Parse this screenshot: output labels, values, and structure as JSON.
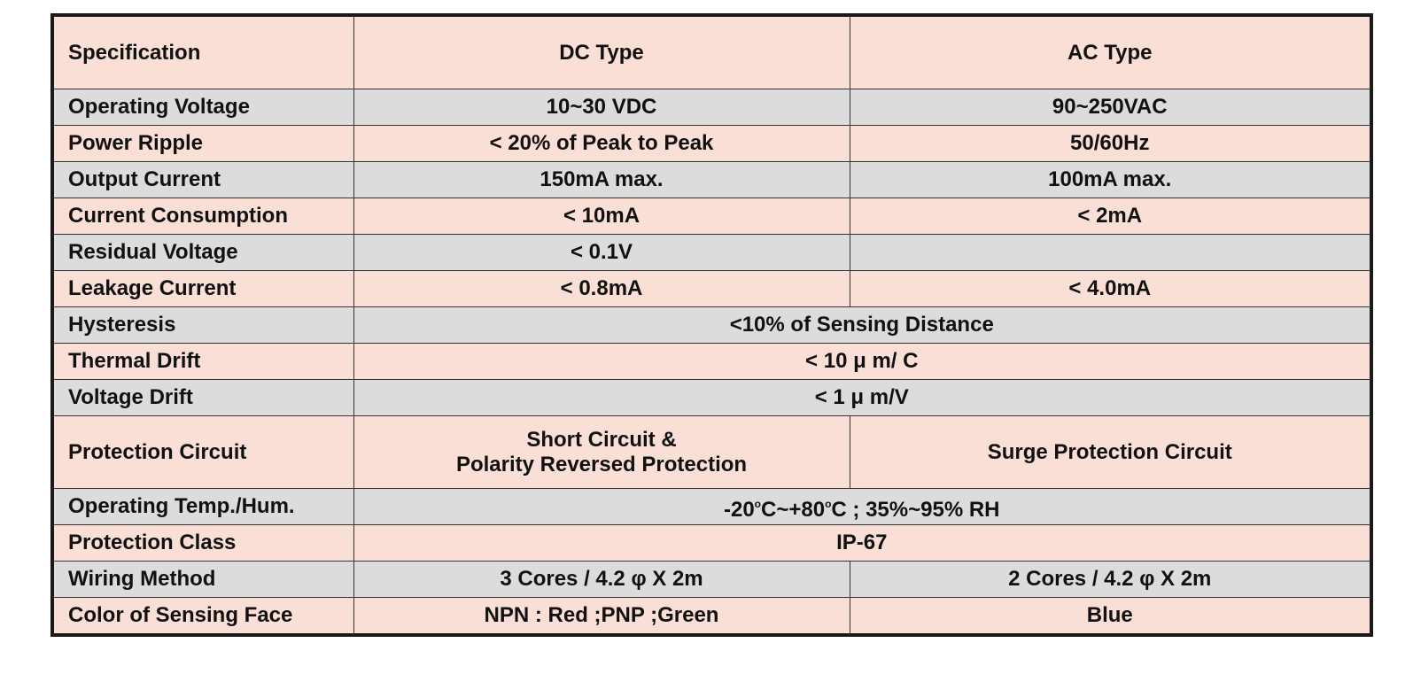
{
  "table": {
    "headers": {
      "spec": "Specification",
      "dc": "DC Type",
      "ac": "AC Type"
    },
    "rows": {
      "operating_voltage": {
        "label": "Operating Voltage",
        "dc": "10~30 VDC",
        "ac": "90~250VAC"
      },
      "power_ripple": {
        "label": "Power Ripple",
        "dc": "< 20% of Peak to Peak",
        "ac": "50/60Hz"
      },
      "output_current": {
        "label": "Output Current",
        "dc": "150mA max.",
        "ac": "100mA max."
      },
      "current_consumption": {
        "label": "Current Consumption",
        "dc": "< 10mA",
        "ac": "< 2mA"
      },
      "residual_voltage": {
        "label": "Residual Voltage",
        "dc": "< 0.1V",
        "ac": ""
      },
      "leakage_current": {
        "label": "Leakage Current",
        "dc": "< 0.8mA",
        "ac": "< 4.0mA"
      },
      "hysteresis": {
        "label": "Hysteresis",
        "value": "<10% of Sensing Distance"
      },
      "thermal_drift": {
        "label": "Thermal Drift",
        "value": "< 10 μ m/ C"
      },
      "voltage_drift": {
        "label": "Voltage Drift",
        "value": "< 1 μ m/V"
      },
      "protection_circuit": {
        "label": "Protection Circuit",
        "dc_line1": "Short Circuit &",
        "dc_line2": "Polarity Reversed Protection",
        "ac": "Surge Protection Circuit"
      },
      "operating_temp": {
        "label": "Operating Temp./Hum.",
        "part1": "-20",
        "degree1": "o",
        "part2": "C~+80",
        "degree2": "o",
        "part3": "C ; 35%~95% RH"
      },
      "protection_class": {
        "label": "Protection Class",
        "value": "IP-67"
      },
      "wiring_method": {
        "label": "Wiring Method",
        "dc": "3 Cores / 4.2 φ X 2m",
        "ac": "2 Cores / 4.2 φ X 2m"
      },
      "color_sensing_face": {
        "label": "Color of Sensing Face",
        "dc": "NPN : Red ;PNP ;Green",
        "ac": "Blue"
      }
    }
  },
  "colors": {
    "row_pink": "#fadfd7",
    "row_gray": "#dcdcdc",
    "border": "#1a1a1a"
  }
}
